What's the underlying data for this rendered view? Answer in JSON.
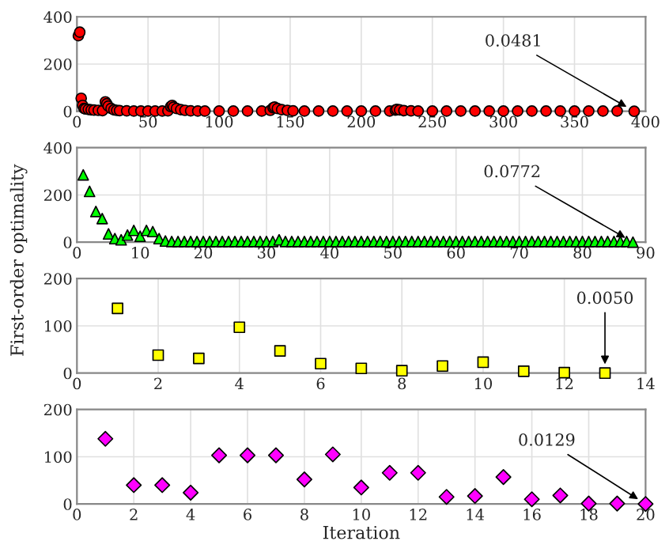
{
  "chart_data": [
    {
      "type": "scatter",
      "xlim": [
        0,
        400
      ],
      "xticks": [
        0,
        50,
        100,
        150,
        200,
        250,
        300,
        350,
        400
      ],
      "ylim": [
        0,
        400
      ],
      "yticks": [
        0,
        200,
        400
      ],
      "grid": true,
      "marker": "circle",
      "annotations": [
        {
          "text": "0.0481",
          "x": 392,
          "y": 0.0481
        }
      ],
      "series": [
        {
          "color": "#ff0000",
          "x": [
            1,
            2,
            3,
            4,
            5,
            6,
            8,
            10,
            12,
            15,
            18,
            20,
            21,
            22,
            24,
            26,
            28,
            30,
            35,
            40,
            45,
            50,
            55,
            60,
            64,
            66,
            67,
            68,
            70,
            73,
            76,
            80,
            85,
            90,
            100,
            110,
            120,
            130,
            136,
            138,
            139,
            141,
            144,
            148,
            152,
            160,
            170,
            180,
            190,
            200,
            210,
            220,
            224,
            225,
            227,
            230,
            235,
            240,
            250,
            260,
            270,
            280,
            290,
            300,
            310,
            320,
            330,
            340,
            350,
            360,
            370,
            380,
            392
          ],
          "values": [
            320,
            335,
            55,
            25,
            12,
            10,
            8,
            6,
            5,
            4,
            3,
            40,
            32,
            22,
            12,
            6,
            4,
            3,
            2,
            1,
            1,
            1,
            1,
            1,
            2,
            20,
            25,
            18,
            12,
            7,
            4,
            2,
            1,
            1,
            1,
            1,
            1,
            1,
            4,
            15,
            18,
            12,
            7,
            4,
            2,
            1,
            1,
            1,
            1,
            1,
            1,
            1,
            5,
            8,
            6,
            3,
            2,
            1,
            1,
            1,
            1,
            1,
            1,
            1,
            1,
            1,
            1,
            1,
            1,
            1,
            1,
            1,
            0.0481
          ]
        }
      ]
    },
    {
      "type": "scatter",
      "xlim": [
        0,
        90
      ],
      "xticks": [
        0,
        10,
        20,
        30,
        40,
        50,
        60,
        70,
        80,
        90
      ],
      "ylim": [
        0,
        400
      ],
      "yticks": [
        0,
        200,
        400
      ],
      "grid": true,
      "marker": "triangle",
      "ylabel": "First-order optimality",
      "annotations": [
        {
          "text": "0.0772",
          "x": 88,
          "y": 0.0772
        }
      ],
      "series": [
        {
          "color": "#00ff00",
          "x": [
            1,
            2,
            3,
            4,
            5,
            6,
            7,
            8,
            9,
            10,
            11,
            12,
            13,
            14,
            15,
            16,
            17,
            18,
            19,
            20,
            21,
            22,
            23,
            24,
            25,
            26,
            27,
            28,
            29,
            30,
            31,
            32,
            33,
            34,
            35,
            36,
            37,
            38,
            39,
            40,
            41,
            42,
            43,
            44,
            45,
            46,
            47,
            48,
            49,
            50,
            51,
            52,
            53,
            54,
            55,
            56,
            57,
            58,
            59,
            60,
            61,
            62,
            63,
            64,
            65,
            66,
            67,
            68,
            69,
            70,
            71,
            72,
            73,
            74,
            75,
            76,
            77,
            78,
            79,
            80,
            81,
            82,
            83,
            84,
            85,
            86,
            87,
            88
          ],
          "values": [
            285,
            215,
            130,
            100,
            35,
            15,
            10,
            30,
            50,
            25,
            50,
            45,
            15,
            5,
            3,
            3,
            3,
            3,
            3,
            3,
            3,
            3,
            3,
            3,
            3,
            3,
            3,
            3,
            3,
            3,
            3,
            10,
            3,
            3,
            3,
            3,
            3,
            3,
            3,
            3,
            3,
            3,
            3,
            3,
            3,
            3,
            3,
            3,
            3,
            3,
            3,
            3,
            3,
            3,
            3,
            3,
            3,
            3,
            3,
            3,
            3,
            3,
            3,
            3,
            3,
            3,
            3,
            3,
            3,
            3,
            3,
            3,
            3,
            3,
            3,
            3,
            3,
            3,
            3,
            3,
            3,
            3,
            3,
            3,
            3,
            3,
            3,
            0.0772
          ]
        }
      ]
    },
    {
      "type": "scatter",
      "xlim": [
        0,
        14
      ],
      "xticks": [
        0,
        2,
        4,
        6,
        8,
        10,
        12,
        14
      ],
      "ylim": [
        0,
        200
      ],
      "yticks": [
        0,
        100,
        200
      ],
      "grid": true,
      "marker": "square",
      "annotations": [
        {
          "text": "0.0050",
          "x": 13,
          "y": 0.005
        }
      ],
      "series": [
        {
          "color": "#ffff00",
          "x": [
            1,
            2,
            3,
            4,
            5,
            6,
            7,
            8,
            9,
            10,
            11,
            12,
            13
          ],
          "values": [
            137,
            38,
            31,
            97,
            47,
            20,
            10,
            5,
            15,
            23,
            4,
            1,
            0.005
          ]
        }
      ]
    },
    {
      "type": "scatter",
      "xlim": [
        0,
        20
      ],
      "xticks": [
        0,
        2,
        4,
        6,
        8,
        10,
        12,
        14,
        16,
        18,
        20
      ],
      "ylim": [
        0,
        200
      ],
      "yticks": [
        0,
        100,
        200
      ],
      "grid": true,
      "marker": "diamond",
      "xlabel": "Iteration",
      "annotations": [
        {
          "text": "0.0129",
          "x": 20,
          "y": 0.0129
        }
      ],
      "series": [
        {
          "color": "#ff00ff",
          "x": [
            1,
            2,
            3,
            4,
            5,
            6,
            7,
            8,
            9,
            10,
            11,
            12,
            13,
            14,
            15,
            16,
            17,
            18,
            19,
            20
          ],
          "values": [
            138,
            40,
            40,
            24,
            103,
            103,
            103,
            52,
            105,
            35,
            66,
            66,
            15,
            17,
            57,
            10,
            18,
            1,
            1,
            0.0129
          ]
        }
      ]
    }
  ]
}
